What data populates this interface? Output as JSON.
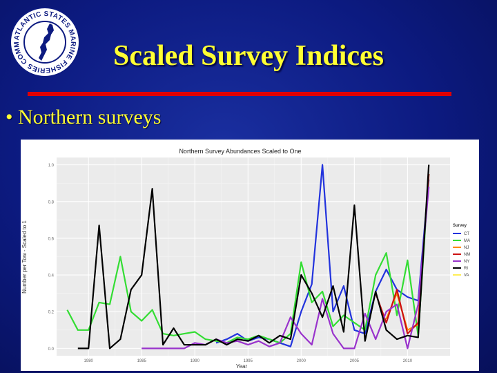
{
  "slide": {
    "title": "Scaled Survey Indices",
    "bullet": "Northern surveys",
    "logo_text": "ATLANTIC STATES MARINE FISHERIES COMMISSION"
  },
  "chart_data": {
    "type": "line",
    "title": "Northern Survey Abundances Scaled to One",
    "xlabel": "Year",
    "ylabel": "Number per Tow - Scaled to 1",
    "xlim": [
      1977,
      2014
    ],
    "ylim": [
      -0.04,
      1.04
    ],
    "xticks": [
      1980,
      1985,
      1990,
      1995,
      2000,
      2005,
      2010
    ],
    "xtick_labels": [
      "1980",
      "1985",
      "1990",
      "1995",
      "2000",
      "2005",
      "2010"
    ],
    "yticks": [
      0.0,
      0.2,
      0.4,
      0.6,
      0.8,
      1.0
    ],
    "ytick_labels": [
      "0.0",
      "0.2",
      "0.4",
      "0.6",
      "0.8",
      "1.0"
    ],
    "grid": true,
    "legend_position": "right",
    "legend_title": "Survey",
    "series": [
      {
        "name": "CT",
        "color": "#2233dd",
        "x": [
          1992,
          1993,
          1994,
          1995,
          1996,
          1997,
          1998,
          1999,
          2000,
          2001,
          2002,
          2003,
          2004,
          2005,
          2006,
          2007,
          2008,
          2009,
          2010,
          2011,
          2012
        ],
        "y": [
          0.03,
          0.05,
          0.08,
          0.04,
          0.06,
          0.05,
          0.03,
          0.01,
          0.2,
          0.35,
          1.0,
          0.2,
          0.34,
          0.1,
          0.08,
          0.31,
          0.43,
          0.32,
          0.28,
          0.26,
          0.92
        ]
      },
      {
        "name": "MA",
        "color": "#33dd33",
        "x": [
          1978,
          1979,
          1980,
          1981,
          1982,
          1983,
          1984,
          1985,
          1986,
          1987,
          1988,
          1989,
          1990,
          1991,
          1992,
          1993,
          1994,
          1995,
          1996,
          1997,
          1998,
          1999,
          2000,
          2001,
          2002,
          2003,
          2004,
          2005,
          2006,
          2007,
          2008,
          2009,
          2010,
          2011,
          2012
        ],
        "y": [
          0.21,
          0.1,
          0.1,
          0.25,
          0.24,
          0.5,
          0.2,
          0.15,
          0.21,
          0.08,
          0.07,
          0.08,
          0.09,
          0.05,
          0.04,
          0.03,
          0.06,
          0.05,
          0.07,
          0.05,
          0.03,
          0.08,
          0.47,
          0.25,
          0.31,
          0.12,
          0.18,
          0.14,
          0.1,
          0.4,
          0.52,
          0.18,
          0.48,
          0.07,
          0.95
        ]
      },
      {
        "name": "NJ",
        "color": "#ff8800",
        "x": [
          2008,
          2009,
          2010,
          2011
        ],
        "y": [
          0.16,
          0.3,
          0.1,
          0.13
        ]
      },
      {
        "name": "NM",
        "color": "#cc1111",
        "x": [
          2007,
          2008,
          2009,
          2010,
          2011,
          2012
        ],
        "y": [
          0.3,
          0.14,
          0.32,
          0.08,
          0.14,
          0.95
        ]
      },
      {
        "name": "NY",
        "color": "#9933cc",
        "x": [
          1985,
          1986,
          1987,
          1988,
          1989,
          1990,
          1991,
          1992,
          1993,
          1994,
          1995,
          1996,
          1997,
          1998,
          1999,
          2000,
          2001,
          2002,
          2003,
          2004,
          2005,
          2006,
          2007,
          2008,
          2009,
          2010,
          2011,
          2012
        ],
        "y": [
          0.0,
          0.0,
          0.0,
          0.0,
          0.0,
          0.03,
          0.02,
          0.05,
          0.03,
          0.04,
          0.02,
          0.04,
          0.01,
          0.03,
          0.17,
          0.08,
          0.02,
          0.27,
          0.08,
          0.0,
          0.0,
          0.19,
          0.05,
          0.2,
          0.24,
          0.0,
          0.24,
          0.88
        ]
      },
      {
        "name": "RI",
        "color": "#000000",
        "x": [
          1979,
          1980,
          1981,
          1982,
          1983,
          1984,
          1985,
          1986,
          1987,
          1988,
          1989,
          1990,
          1991,
          1992,
          1993,
          1994,
          1995,
          1996,
          1997,
          1998,
          1999,
          2000,
          2001,
          2002,
          2003,
          2004,
          2005,
          2006,
          2007,
          2008,
          2009,
          2010,
          2011,
          2012
        ],
        "y": [
          0.0,
          0.0,
          0.67,
          0.0,
          0.05,
          0.32,
          0.4,
          0.87,
          0.02,
          0.11,
          0.02,
          0.02,
          0.02,
          0.05,
          0.02,
          0.05,
          0.04,
          0.07,
          0.03,
          0.07,
          0.05,
          0.4,
          0.3,
          0.17,
          0.34,
          0.09,
          0.78,
          0.04,
          0.31,
          0.1,
          0.05,
          0.07,
          0.06,
          1.0
        ]
      },
      {
        "name": "VA",
        "color": "#ffee55",
        "x": [],
        "y": []
      }
    ]
  }
}
